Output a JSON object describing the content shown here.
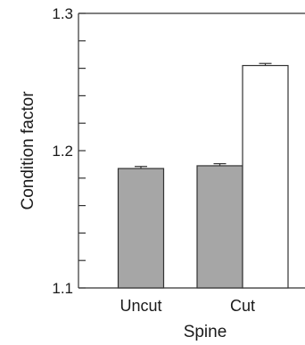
{
  "chart_data": {
    "type": "bar",
    "title": "",
    "xlabel": "Spine",
    "ylabel": "Condition factor",
    "categories": [
      "Uncut",
      "Cut"
    ],
    "ylim": [
      1.1,
      1.3
    ],
    "yticks": [
      "1.1",
      "1.2",
      "1.3"
    ],
    "minor_tick_step": 0.02,
    "grid": false,
    "legend": "none",
    "series": [
      {
        "fill": "#a6a6a6",
        "values": [
          1.187,
          1.189
        ],
        "errors": [
          0.0015,
          0.0015
        ]
      },
      {
        "fill": "#ffffff",
        "values": [
          null,
          1.262
        ],
        "errors": [
          null,
          0.0015
        ]
      }
    ]
  }
}
